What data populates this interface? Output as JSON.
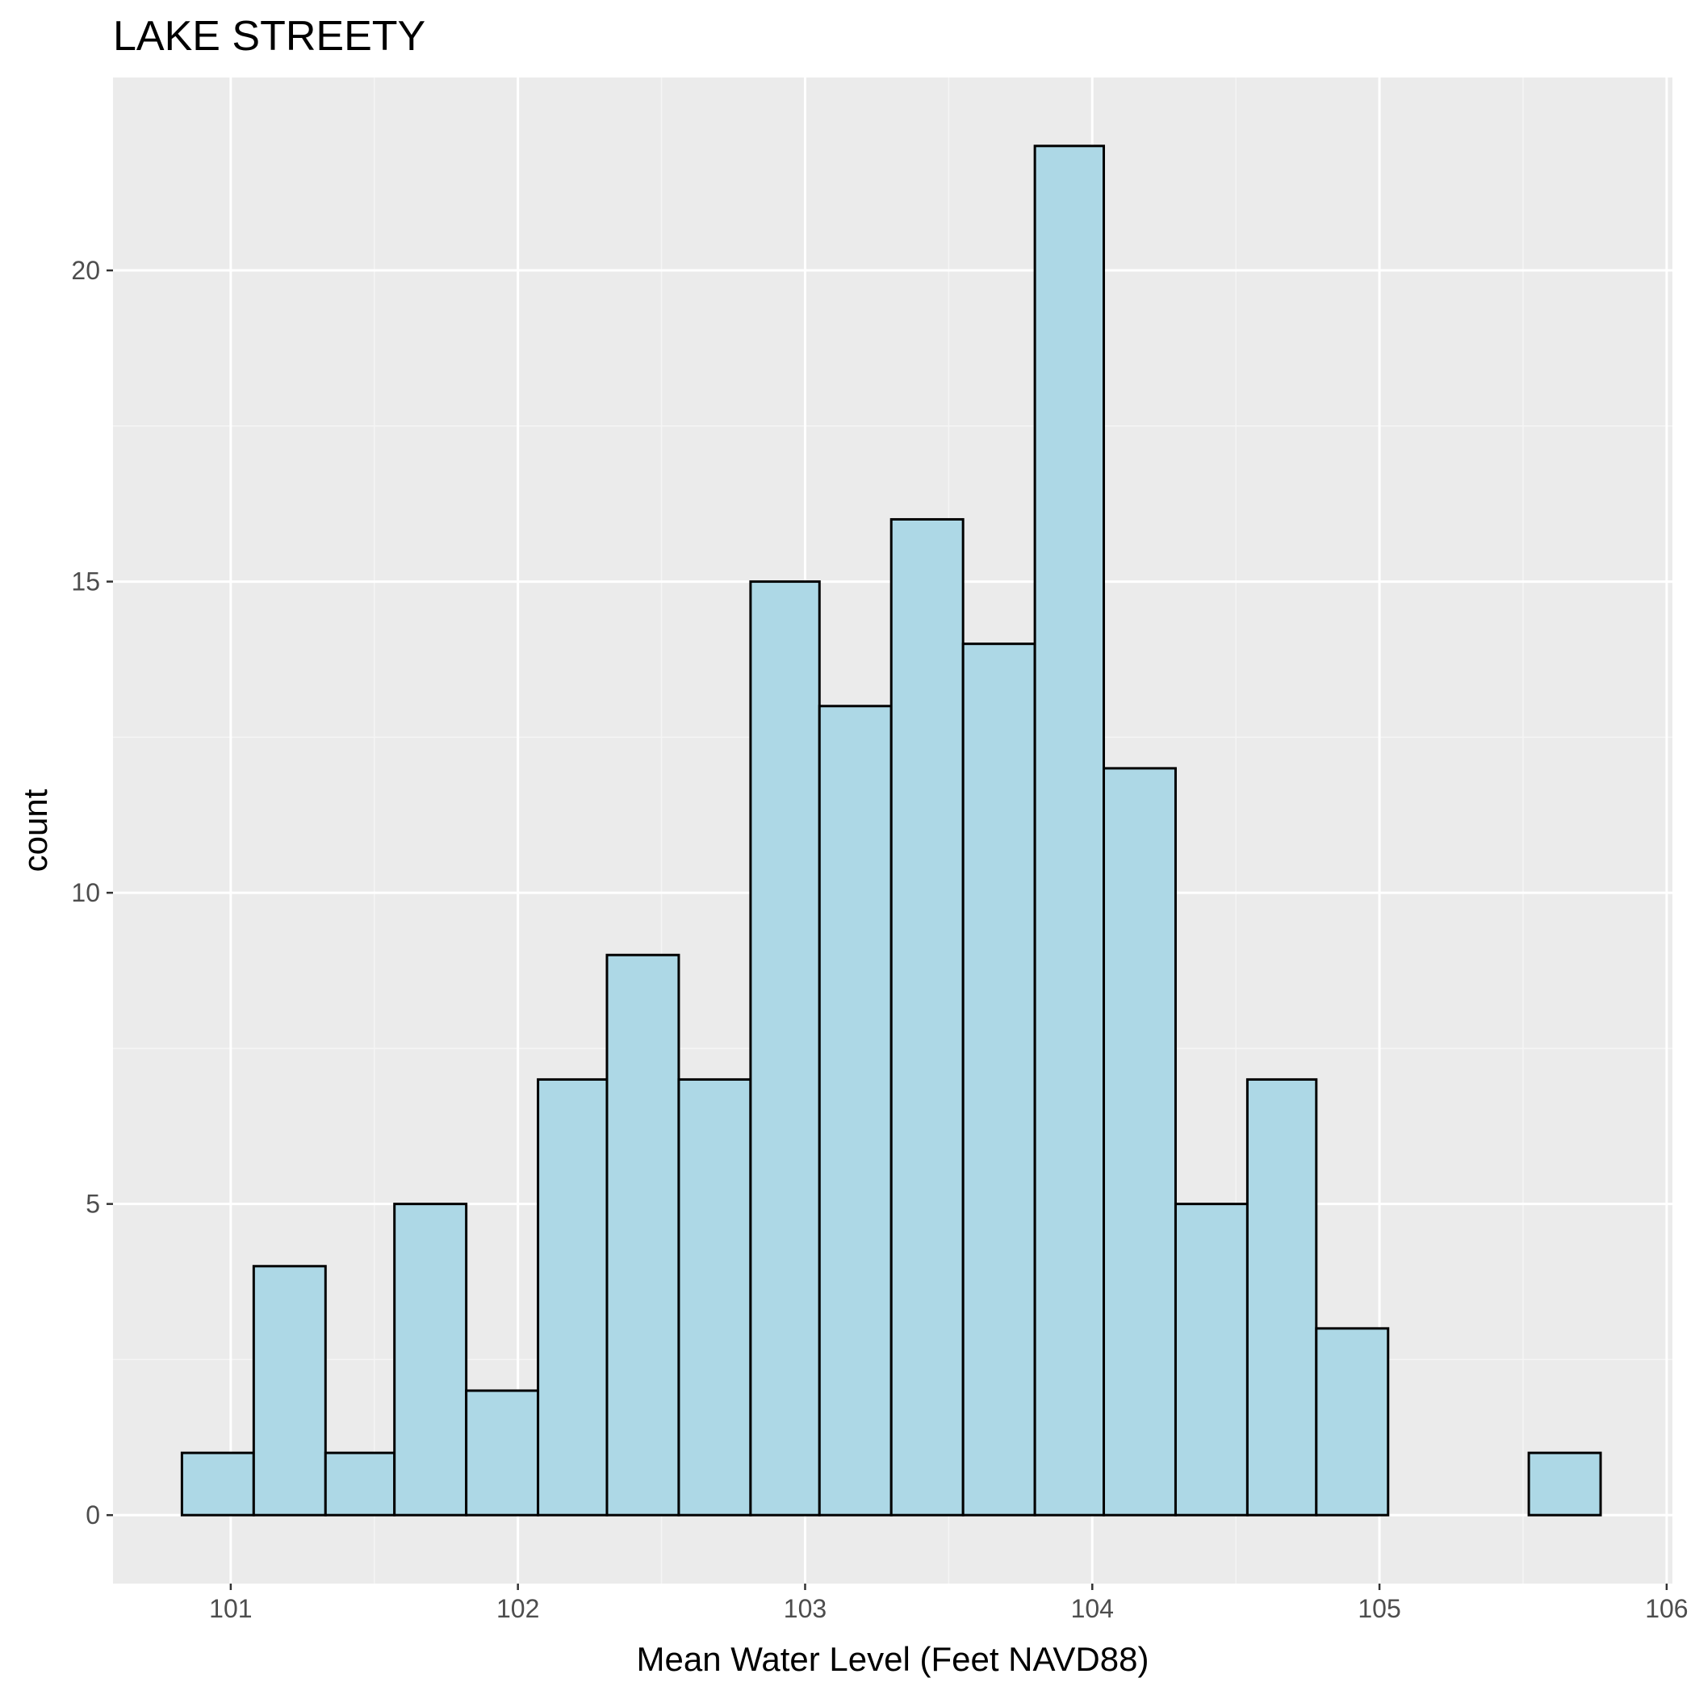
{
  "chart_data": {
    "type": "bar",
    "title": "LAKE STREETY",
    "xlabel": "Mean Water Level (Feet NAVD88)",
    "ylabel": "count",
    "xlim": [
      100.59,
      106.02
    ],
    "ylim": [
      -1.1,
      23.1
    ],
    "x_ticks": [
      101,
      102,
      103,
      104,
      105,
      106
    ],
    "y_ticks": [
      0,
      5,
      10,
      15,
      20
    ],
    "grid": true,
    "legend": "none",
    "bin_width": 0.247,
    "bins": [
      {
        "x0": 100.83,
        "x1": 101.08,
        "count": 1
      },
      {
        "x0": 101.08,
        "x1": 101.33,
        "count": 4
      },
      {
        "x0": 101.33,
        "x1": 101.57,
        "count": 1
      },
      {
        "x0": 101.57,
        "x1": 101.82,
        "count": 5
      },
      {
        "x0": 101.82,
        "x1": 102.07,
        "count": 2
      },
      {
        "x0": 102.07,
        "x1": 102.31,
        "count": 7
      },
      {
        "x0": 102.31,
        "x1": 102.56,
        "count": 9
      },
      {
        "x0": 102.56,
        "x1": 102.81,
        "count": 7
      },
      {
        "x0": 102.81,
        "x1": 103.05,
        "count": 15
      },
      {
        "x0": 103.05,
        "x1": 103.3,
        "count": 13
      },
      {
        "x0": 103.3,
        "x1": 103.55,
        "count": 16
      },
      {
        "x0": 103.55,
        "x1": 103.8,
        "count": 14
      },
      {
        "x0": 103.8,
        "x1": 104.04,
        "count": 22
      },
      {
        "x0": 104.04,
        "x1": 104.29,
        "count": 12
      },
      {
        "x0": 104.29,
        "x1": 104.54,
        "count": 5
      },
      {
        "x0": 104.54,
        "x1": 104.78,
        "count": 7
      },
      {
        "x0": 104.78,
        "x1": 105.03,
        "count": 3
      },
      {
        "x0": 105.03,
        "x1": 105.28,
        "count": 0
      },
      {
        "x0": 105.28,
        "x1": 105.52,
        "count": 0
      },
      {
        "x0": 105.52,
        "x1": 105.77,
        "count": 1
      }
    ],
    "colors": {
      "panel_background": "#ebebeb",
      "grid_major": "#ffffff",
      "grid_minor": "#f5f5f5",
      "bar_fill": "#add8e6",
      "bar_outline": "#000000",
      "tick_label": "#4d4d4d",
      "tick_mark": "#333333"
    }
  }
}
